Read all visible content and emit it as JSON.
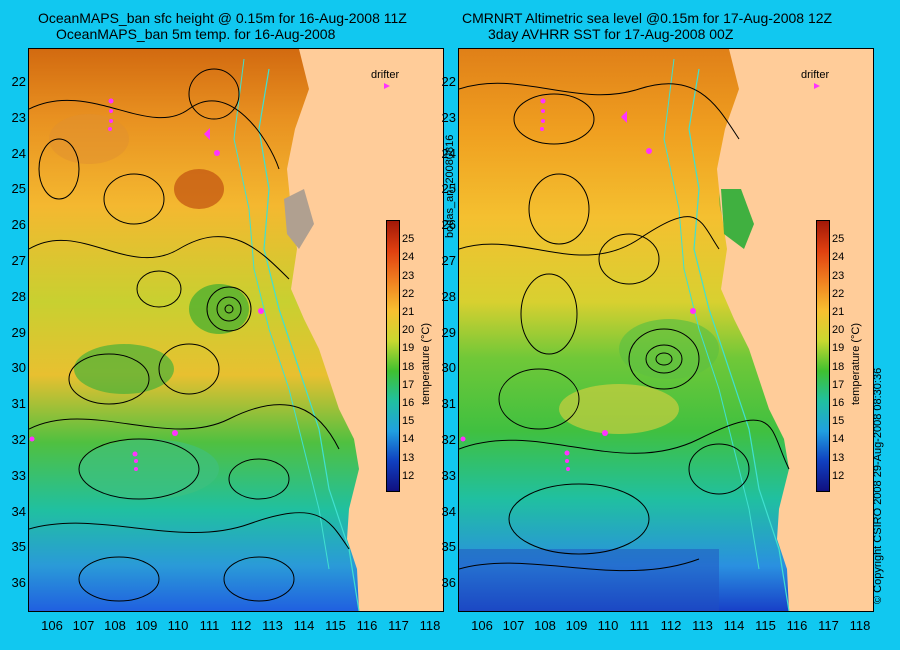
{
  "left_panel": {
    "title_line1": "OceanMAPS_ban sfc height @ 0.15m for 16-Aug-2008 11Z",
    "title_line2": "OceanMAPS_ban 5m temp. for 16-Aug-2008",
    "drifter_label": "drifter"
  },
  "right_panel": {
    "title_line1": "CMRNRT Altimetric sea level  @0.15m  for 17-Aug-2008 12Z",
    "title_line2": "3day AVHRR SST for 17-Aug-2008 00Z",
    "drifter_label": "drifter"
  },
  "colorbar": {
    "label": "temperature (°C)",
    "ticks": [
      "25",
      "24",
      "23",
      "22",
      "21",
      "20",
      "19",
      "18",
      "17",
      "16",
      "15",
      "14",
      "13",
      "12"
    ]
  },
  "latitude_ticks": [
    "22",
    "23",
    "24",
    "25",
    "26",
    "27",
    "28",
    "29",
    "30",
    "31",
    "32",
    "33",
    "34",
    "35",
    "36"
  ],
  "longitude_ticks": [
    "106",
    "107",
    "108",
    "109",
    "110",
    "111",
    "112",
    "113",
    "114",
    "115",
    "116",
    "117",
    "118"
  ],
  "side_text": {
    "run_id": "bodas_an_20080816",
    "copyright": "© Copyright CSIRO 2008   29-Aug-2008 08:30:36"
  },
  "colors": {
    "background": "#11c8f0",
    "land": "#ffcc99",
    "contour": "#000000",
    "bathymetry": "#40e0d0",
    "drifter": "#ff33ff"
  }
}
